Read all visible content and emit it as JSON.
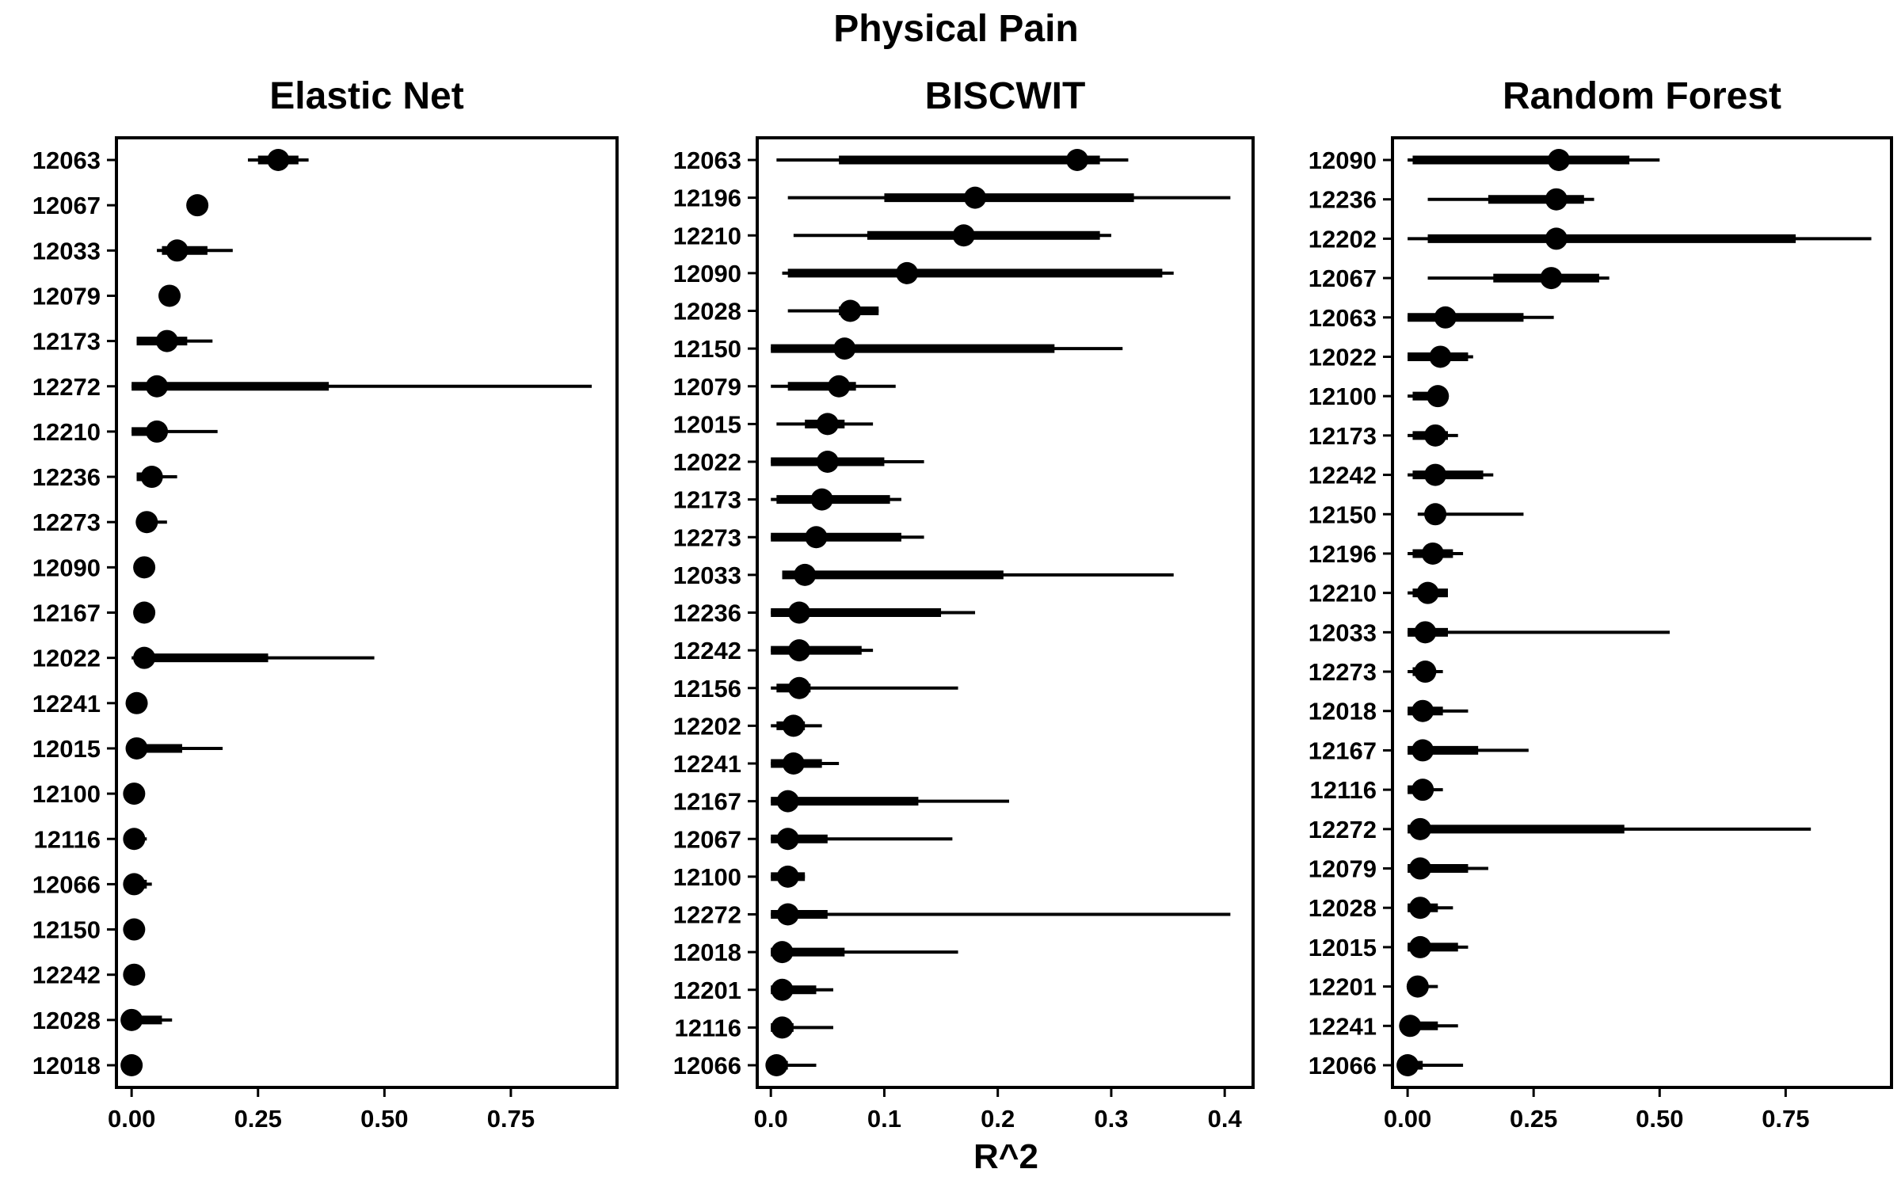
{
  "figure": {
    "title": "Physical Pain",
    "xlabel": "R^2"
  },
  "chart_data": [
    {
      "type": "interval-dot",
      "title": "Elastic Net",
      "xlim": [
        -0.03,
        0.96
      ],
      "xticks": [
        0.0,
        0.25,
        0.5,
        0.75
      ],
      "xtick_labels": [
        "0.00",
        "0.25",
        "0.50",
        "0.75"
      ],
      "rows": [
        {
          "label": "12063",
          "median": 0.29,
          "thick": [
            0.25,
            0.33
          ],
          "thin": [
            0.23,
            0.35
          ]
        },
        {
          "label": "12067",
          "median": 0.13,
          "thick": [
            0.13,
            0.13
          ],
          "thin": [
            0.13,
            0.13
          ]
        },
        {
          "label": "12033",
          "median": 0.09,
          "thick": [
            0.06,
            0.15
          ],
          "thin": [
            0.05,
            0.2
          ]
        },
        {
          "label": "12079",
          "median": 0.075,
          "thick": [
            0.07,
            0.08
          ],
          "thin": [
            0.07,
            0.08
          ]
        },
        {
          "label": "12173",
          "median": 0.07,
          "thick": [
            0.01,
            0.11
          ],
          "thin": [
            0.01,
            0.16
          ]
        },
        {
          "label": "12272",
          "median": 0.05,
          "thick": [
            0.0,
            0.39
          ],
          "thin": [
            0.0,
            0.91
          ]
        },
        {
          "label": "12210",
          "median": 0.05,
          "thick": [
            0.0,
            0.07
          ],
          "thin": [
            0.0,
            0.17
          ]
        },
        {
          "label": "12236",
          "median": 0.04,
          "thick": [
            0.01,
            0.05
          ],
          "thin": [
            0.01,
            0.09
          ]
        },
        {
          "label": "12273",
          "median": 0.03,
          "thick": [
            0.01,
            0.05
          ],
          "thin": [
            0.01,
            0.07
          ]
        },
        {
          "label": "12090",
          "median": 0.025,
          "thick": [
            0.02,
            0.03
          ],
          "thin": [
            0.02,
            0.03
          ]
        },
        {
          "label": "12167",
          "median": 0.025,
          "thick": [
            0.01,
            0.04
          ],
          "thin": [
            0.01,
            0.04
          ]
        },
        {
          "label": "12022",
          "median": 0.025,
          "thick": [
            0.01,
            0.27
          ],
          "thin": [
            0.0,
            0.48
          ]
        },
        {
          "label": "12241",
          "median": 0.01,
          "thick": [
            0.01,
            0.01
          ],
          "thin": [
            0.01,
            0.01
          ]
        },
        {
          "label": "12015",
          "median": 0.01,
          "thick": [
            0.0,
            0.1
          ],
          "thin": [
            0.0,
            0.18
          ]
        },
        {
          "label": "12100",
          "median": 0.005,
          "thick": [
            0.0,
            0.01
          ],
          "thin": [
            0.0,
            0.01
          ]
        },
        {
          "label": "12116",
          "median": 0.005,
          "thick": [
            0.0,
            0.02
          ],
          "thin": [
            0.0,
            0.03
          ]
        },
        {
          "label": "12066",
          "median": 0.005,
          "thick": [
            0.0,
            0.03
          ],
          "thin": [
            0.0,
            0.04
          ]
        },
        {
          "label": "12150",
          "median": 0.005,
          "thick": [
            0.0,
            0.01
          ],
          "thin": [
            0.0,
            0.01
          ]
        },
        {
          "label": "12242",
          "median": 0.005,
          "thick": [
            0.0,
            0.01
          ],
          "thin": [
            0.0,
            0.01
          ]
        },
        {
          "label": "12028",
          "median": 0.0,
          "thick": [
            0.0,
            0.06
          ],
          "thin": [
            0.0,
            0.08
          ]
        },
        {
          "label": "12018",
          "median": 0.0,
          "thick": [
            0.0,
            0.0
          ],
          "thin": [
            0.0,
            0.0
          ]
        }
      ]
    },
    {
      "type": "interval-dot",
      "title": "BISCWIT",
      "xlim": [
        -0.012,
        0.425
      ],
      "xticks": [
        0.0,
        0.1,
        0.2,
        0.3,
        0.4
      ],
      "xtick_labels": [
        "0.0",
        "0.1",
        "0.2",
        "0.3",
        "0.4"
      ],
      "rows": [
        {
          "label": "12063",
          "median": 0.27,
          "thick": [
            0.06,
            0.29
          ],
          "thin": [
            0.005,
            0.315
          ]
        },
        {
          "label": "12196",
          "median": 0.18,
          "thick": [
            0.1,
            0.32
          ],
          "thin": [
            0.015,
            0.405
          ]
        },
        {
          "label": "12210",
          "median": 0.17,
          "thick": [
            0.085,
            0.29
          ],
          "thin": [
            0.02,
            0.3
          ]
        },
        {
          "label": "12090",
          "median": 0.12,
          "thick": [
            0.015,
            0.345
          ],
          "thin": [
            0.01,
            0.355
          ]
        },
        {
          "label": "12028",
          "median": 0.07,
          "thick": [
            0.06,
            0.095
          ],
          "thin": [
            0.015,
            0.095
          ]
        },
        {
          "label": "12150",
          "median": 0.065,
          "thick": [
            0.0,
            0.25
          ],
          "thin": [
            0.0,
            0.31
          ]
        },
        {
          "label": "12079",
          "median": 0.06,
          "thick": [
            0.015,
            0.075
          ],
          "thin": [
            0.0,
            0.11
          ]
        },
        {
          "label": "12015",
          "median": 0.05,
          "thick": [
            0.03,
            0.065
          ],
          "thin": [
            0.005,
            0.09
          ]
        },
        {
          "label": "12022",
          "median": 0.05,
          "thick": [
            0.0,
            0.1
          ],
          "thin": [
            0.0,
            0.135
          ]
        },
        {
          "label": "12173",
          "median": 0.045,
          "thick": [
            0.005,
            0.105
          ],
          "thin": [
            0.0,
            0.115
          ]
        },
        {
          "label": "12273",
          "median": 0.04,
          "thick": [
            0.0,
            0.115
          ],
          "thin": [
            0.0,
            0.135
          ]
        },
        {
          "label": "12033",
          "median": 0.03,
          "thick": [
            0.01,
            0.205
          ],
          "thin": [
            0.01,
            0.355
          ]
        },
        {
          "label": "12236",
          "median": 0.025,
          "thick": [
            0.0,
            0.15
          ],
          "thin": [
            0.0,
            0.18
          ]
        },
        {
          "label": "12242",
          "median": 0.025,
          "thick": [
            0.0,
            0.08
          ],
          "thin": [
            0.0,
            0.09
          ]
        },
        {
          "label": "12156",
          "median": 0.025,
          "thick": [
            0.005,
            0.035
          ],
          "thin": [
            0.0,
            0.165
          ]
        },
        {
          "label": "12202",
          "median": 0.02,
          "thick": [
            0.005,
            0.03
          ],
          "thin": [
            0.0,
            0.045
          ]
        },
        {
          "label": "12241",
          "median": 0.02,
          "thick": [
            0.0,
            0.045
          ],
          "thin": [
            0.0,
            0.06
          ]
        },
        {
          "label": "12167",
          "median": 0.015,
          "thick": [
            0.0,
            0.13
          ],
          "thin": [
            0.0,
            0.21
          ]
        },
        {
          "label": "12067",
          "median": 0.015,
          "thick": [
            0.0,
            0.05
          ],
          "thin": [
            0.0,
            0.16
          ]
        },
        {
          "label": "12100",
          "median": 0.015,
          "thick": [
            0.0,
            0.03
          ],
          "thin": [
            0.0,
            0.03
          ]
        },
        {
          "label": "12272",
          "median": 0.015,
          "thick": [
            0.0,
            0.05
          ],
          "thin": [
            0.0,
            0.405
          ]
        },
        {
          "label": "12018",
          "median": 0.01,
          "thick": [
            0.0,
            0.065
          ],
          "thin": [
            0.0,
            0.165
          ]
        },
        {
          "label": "12201",
          "median": 0.01,
          "thick": [
            0.0,
            0.04
          ],
          "thin": [
            0.0,
            0.055
          ]
        },
        {
          "label": "12116",
          "median": 0.01,
          "thick": [
            0.0,
            0.02
          ],
          "thin": [
            0.0,
            0.055
          ]
        },
        {
          "label": "12066",
          "median": 0.005,
          "thick": [
            0.0,
            0.015
          ],
          "thin": [
            0.0,
            0.04
          ]
        }
      ]
    },
    {
      "type": "interval-dot",
      "title": "Random Forest",
      "xlim": [
        -0.03,
        0.96
      ],
      "xticks": [
        0.0,
        0.25,
        0.5,
        0.75
      ],
      "xtick_labels": [
        "0.00",
        "0.25",
        "0.50",
        "0.75"
      ],
      "rows": [
        {
          "label": "12090",
          "median": 0.3,
          "thick": [
            0.01,
            0.44
          ],
          "thin": [
            0.0,
            0.5
          ]
        },
        {
          "label": "12236",
          "median": 0.295,
          "thick": [
            0.16,
            0.35
          ],
          "thin": [
            0.04,
            0.37
          ]
        },
        {
          "label": "12202",
          "median": 0.295,
          "thick": [
            0.04,
            0.77
          ],
          "thin": [
            0.0,
            0.92
          ]
        },
        {
          "label": "12067",
          "median": 0.285,
          "thick": [
            0.17,
            0.38
          ],
          "thin": [
            0.04,
            0.4
          ]
        },
        {
          "label": "12063",
          "median": 0.075,
          "thick": [
            0.0,
            0.23
          ],
          "thin": [
            0.0,
            0.29
          ]
        },
        {
          "label": "12022",
          "median": 0.065,
          "thick": [
            0.0,
            0.12
          ],
          "thin": [
            0.0,
            0.13
          ]
        },
        {
          "label": "12100",
          "median": 0.06,
          "thick": [
            0.01,
            0.07
          ],
          "thin": [
            0.0,
            0.07
          ]
        },
        {
          "label": "12173",
          "median": 0.055,
          "thick": [
            0.01,
            0.08
          ],
          "thin": [
            0.0,
            0.1
          ]
        },
        {
          "label": "12242",
          "median": 0.055,
          "thick": [
            0.01,
            0.15
          ],
          "thin": [
            0.0,
            0.17
          ]
        },
        {
          "label": "12150",
          "median": 0.055,
          "thick": [
            0.04,
            0.06
          ],
          "thin": [
            0.02,
            0.23
          ]
        },
        {
          "label": "12196",
          "median": 0.05,
          "thick": [
            0.01,
            0.09
          ],
          "thin": [
            0.0,
            0.11
          ]
        },
        {
          "label": "12210",
          "median": 0.04,
          "thick": [
            0.01,
            0.08
          ],
          "thin": [
            0.0,
            0.08
          ]
        },
        {
          "label": "12033",
          "median": 0.035,
          "thick": [
            0.0,
            0.08
          ],
          "thin": [
            0.0,
            0.52
          ]
        },
        {
          "label": "12273",
          "median": 0.035,
          "thick": [
            0.01,
            0.05
          ],
          "thin": [
            0.0,
            0.07
          ]
        },
        {
          "label": "12018",
          "median": 0.03,
          "thick": [
            0.0,
            0.07
          ],
          "thin": [
            0.0,
            0.12
          ]
        },
        {
          "label": "12167",
          "median": 0.03,
          "thick": [
            0.0,
            0.14
          ],
          "thin": [
            0.0,
            0.24
          ]
        },
        {
          "label": "12116",
          "median": 0.03,
          "thick": [
            0.0,
            0.05
          ],
          "thin": [
            0.0,
            0.07
          ]
        },
        {
          "label": "12272",
          "median": 0.025,
          "thick": [
            0.0,
            0.43
          ],
          "thin": [
            0.0,
            0.8
          ]
        },
        {
          "label": "12079",
          "median": 0.025,
          "thick": [
            0.0,
            0.12
          ],
          "thin": [
            0.0,
            0.16
          ]
        },
        {
          "label": "12028",
          "median": 0.025,
          "thick": [
            0.0,
            0.06
          ],
          "thin": [
            0.0,
            0.09
          ]
        },
        {
          "label": "12015",
          "median": 0.025,
          "thick": [
            0.0,
            0.1
          ],
          "thin": [
            0.0,
            0.12
          ]
        },
        {
          "label": "12201",
          "median": 0.02,
          "thick": [
            0.0,
            0.04
          ],
          "thin": [
            0.0,
            0.06
          ]
        },
        {
          "label": "12241",
          "median": 0.005,
          "thick": [
            0.0,
            0.06
          ],
          "thin": [
            0.0,
            0.1
          ]
        },
        {
          "label": "12066",
          "median": 0.0,
          "thick": [
            0.0,
            0.03
          ],
          "thin": [
            0.0,
            0.11
          ]
        }
      ]
    }
  ]
}
